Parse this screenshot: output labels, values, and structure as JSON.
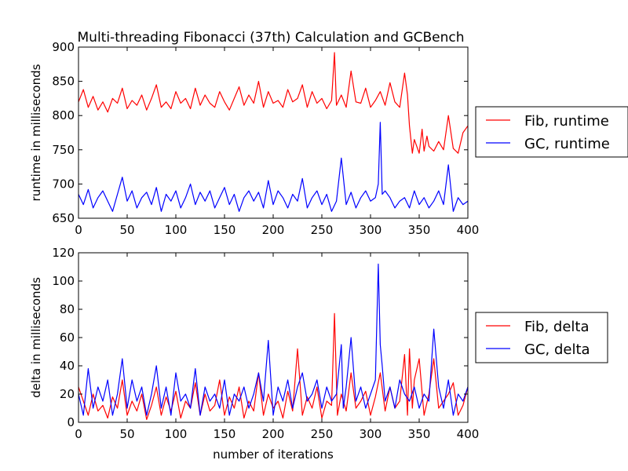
{
  "chart_data": [
    {
      "type": "line",
      "title": "Multi-threading Fibonacci (37th) Calculation and GCBench",
      "xlabel": "",
      "ylabel": "runtime in milliseconds",
      "xlim": [
        0,
        400
      ],
      "ylim": [
        650,
        900
      ],
      "xticks": [
        0,
        50,
        100,
        150,
        200,
        250,
        300,
        350,
        400
      ],
      "yticks": [
        650,
        700,
        750,
        800,
        850,
        900
      ],
      "grid": false,
      "legend": "right, outside",
      "series": [
        {
          "name": "Fib, runtime",
          "color": "#ff0000",
          "x": [
            0,
            5,
            10,
            15,
            20,
            25,
            30,
            35,
            40,
            45,
            50,
            55,
            60,
            65,
            70,
            75,
            80,
            85,
            90,
            95,
            100,
            105,
            110,
            115,
            120,
            125,
            130,
            135,
            140,
            145,
            150,
            155,
            160,
            165,
            170,
            175,
            180,
            185,
            190,
            195,
            200,
            205,
            210,
            215,
            220,
            225,
            230,
            235,
            240,
            245,
            250,
            255,
            260,
            263,
            265,
            270,
            275,
            280,
            285,
            290,
            295,
            300,
            305,
            310,
            315,
            320,
            325,
            330,
            335,
            338,
            340,
            343,
            345,
            350,
            353,
            355,
            358,
            360,
            365,
            370,
            375,
            380,
            385,
            390,
            395,
            400
          ],
          "values": [
            820,
            838,
            812,
            828,
            808,
            820,
            805,
            825,
            818,
            840,
            810,
            822,
            815,
            830,
            808,
            825,
            845,
            812,
            820,
            810,
            835,
            818,
            825,
            810,
            840,
            815,
            830,
            818,
            812,
            835,
            820,
            808,
            825,
            842,
            815,
            830,
            818,
            850,
            812,
            835,
            818,
            822,
            812,
            838,
            820,
            825,
            845,
            812,
            835,
            818,
            825,
            810,
            822,
            892,
            815,
            830,
            812,
            865,
            820,
            818,
            840,
            812,
            822,
            835,
            815,
            848,
            820,
            812,
            862,
            830,
            785,
            745,
            765,
            745,
            780,
            748,
            770,
            755,
            748,
            762,
            750,
            800,
            752,
            745,
            775,
            785
          ]
        },
        {
          "name": "GC, runtime",
          "color": "#0000ff",
          "x": [
            0,
            5,
            10,
            15,
            20,
            25,
            30,
            35,
            40,
            45,
            50,
            55,
            60,
            65,
            70,
            75,
            80,
            85,
            90,
            95,
            100,
            105,
            110,
            115,
            120,
            125,
            130,
            135,
            140,
            145,
            150,
            155,
            160,
            165,
            170,
            175,
            180,
            185,
            190,
            195,
            200,
            205,
            210,
            215,
            220,
            225,
            230,
            235,
            240,
            245,
            250,
            255,
            260,
            265,
            270,
            275,
            280,
            285,
            290,
            295,
            300,
            305,
            308,
            310,
            312,
            315,
            320,
            325,
            330,
            335,
            340,
            345,
            350,
            355,
            360,
            365,
            370,
            375,
            380,
            385,
            390,
            395,
            400
          ],
          "values": [
            685,
            670,
            692,
            665,
            680,
            690,
            675,
            660,
            685,
            710,
            675,
            690,
            665,
            680,
            688,
            670,
            695,
            660,
            685,
            675,
            690,
            665,
            680,
            700,
            670,
            688,
            675,
            690,
            665,
            680,
            695,
            670,
            685,
            660,
            680,
            690,
            675,
            688,
            665,
            705,
            670,
            690,
            680,
            665,
            685,
            675,
            708,
            665,
            680,
            690,
            670,
            685,
            660,
            675,
            738,
            670,
            688,
            665,
            680,
            690,
            675,
            680,
            700,
            790,
            685,
            690,
            680,
            665,
            675,
            680,
            665,
            690,
            670,
            680,
            665,
            675,
            690,
            670,
            728,
            660,
            680,
            670,
            675
          ]
        }
      ]
    },
    {
      "type": "line",
      "title": "",
      "xlabel": "number of iterations",
      "ylabel": "delta in milliseconds",
      "xlim": [
        0,
        400
      ],
      "ylim": [
        0,
        120
      ],
      "xticks": [
        0,
        50,
        100,
        150,
        200,
        250,
        300,
        350,
        400
      ],
      "yticks": [
        0,
        20,
        40,
        60,
        80,
        100,
        120
      ],
      "grid": false,
      "legend": "right, outside",
      "series": [
        {
          "name": "Fib, delta",
          "color": "#ff0000",
          "x": [
            0,
            5,
            10,
            15,
            20,
            25,
            30,
            35,
            40,
            45,
            50,
            55,
            60,
            65,
            70,
            75,
            80,
            85,
            90,
            95,
            100,
            105,
            110,
            115,
            120,
            125,
            130,
            135,
            140,
            145,
            150,
            155,
            160,
            165,
            170,
            175,
            180,
            185,
            190,
            195,
            200,
            205,
            210,
            215,
            220,
            225,
            230,
            235,
            240,
            245,
            250,
            255,
            260,
            263,
            266,
            270,
            275,
            280,
            285,
            290,
            295,
            300,
            305,
            310,
            315,
            320,
            325,
            330,
            335,
            338,
            340,
            343,
            345,
            350,
            355,
            360,
            365,
            370,
            375,
            380,
            385,
            390,
            395,
            400
          ],
          "values": [
            25,
            15,
            5,
            20,
            8,
            12,
            3,
            18,
            10,
            30,
            5,
            15,
            8,
            20,
            2,
            12,
            25,
            5,
            18,
            8,
            22,
            3,
            15,
            10,
            28,
            5,
            20,
            8,
            12,
            30,
            5,
            18,
            10,
            25,
            3,
            15,
            8,
            35,
            5,
            20,
            10,
            15,
            3,
            22,
            8,
            52,
            5,
            18,
            10,
            25,
            3,
            15,
            12,
            77,
            5,
            20,
            8,
            35,
            10,
            15,
            22,
            5,
            18,
            35,
            8,
            25,
            10,
            15,
            48,
            5,
            52,
            10,
            30,
            45,
            5,
            20,
            45,
            10,
            15,
            20,
            28,
            5,
            12,
            25
          ]
        },
        {
          "name": "GC, delta",
          "color": "#0000ff",
          "x": [
            0,
            5,
            10,
            15,
            20,
            25,
            30,
            35,
            40,
            45,
            50,
            55,
            60,
            65,
            70,
            75,
            80,
            85,
            90,
            95,
            100,
            105,
            110,
            115,
            120,
            125,
            130,
            135,
            140,
            145,
            150,
            155,
            160,
            165,
            170,
            175,
            180,
            185,
            190,
            195,
            200,
            205,
            210,
            215,
            220,
            225,
            230,
            235,
            240,
            245,
            250,
            255,
            260,
            265,
            270,
            272,
            275,
            280,
            285,
            290,
            295,
            300,
            305,
            308,
            310,
            312,
            315,
            320,
            325,
            330,
            335,
            340,
            345,
            350,
            355,
            360,
            365,
            370,
            375,
            380,
            385,
            390,
            395,
            400
          ],
          "values": [
            20,
            5,
            38,
            10,
            25,
            15,
            30,
            5,
            20,
            45,
            10,
            30,
            15,
            25,
            5,
            20,
            40,
            10,
            25,
            5,
            35,
            15,
            20,
            10,
            38,
            5,
            25,
            15,
            20,
            10,
            30,
            5,
            20,
            15,
            25,
            10,
            20,
            35,
            15,
            58,
            5,
            25,
            15,
            30,
            10,
            25,
            35,
            15,
            20,
            30,
            10,
            25,
            15,
            20,
            55,
            10,
            25,
            60,
            15,
            25,
            10,
            20,
            30,
            112,
            55,
            40,
            15,
            25,
            10,
            30,
            20,
            15,
            25,
            10,
            20,
            15,
            66,
            25,
            10,
            30,
            5,
            20,
            15,
            25
          ]
        }
      ]
    }
  ]
}
